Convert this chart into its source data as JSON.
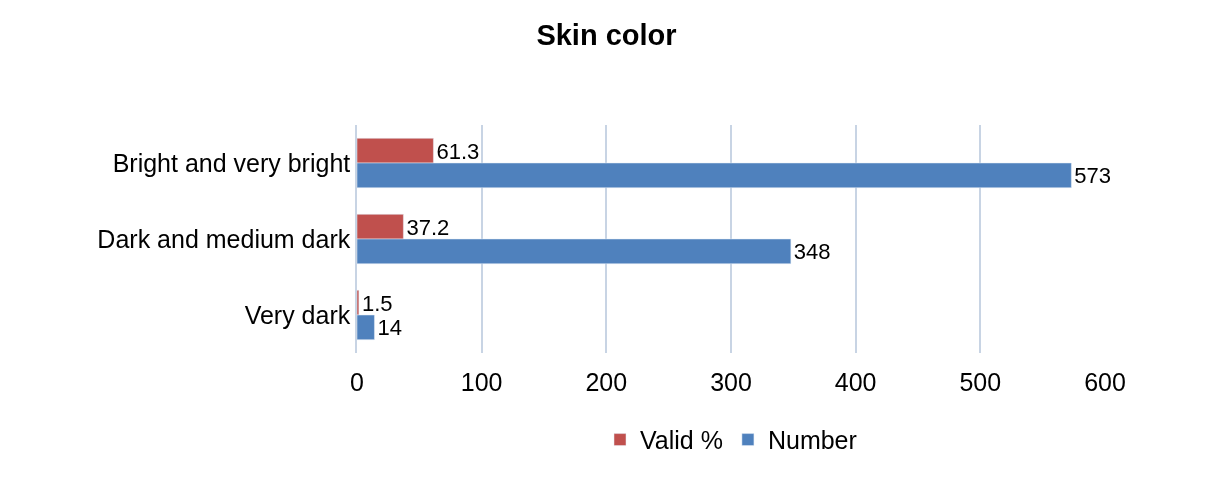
{
  "chart_data": {
    "type": "bar",
    "orientation": "horizontal",
    "title": "Skin color",
    "categories": [
      "Bright and very bright",
      "Dark and medium dark",
      "Very dark"
    ],
    "series": [
      {
        "name": "Valid %",
        "color": "#c0504d",
        "values": [
          61.3,
          37.2,
          1.5
        ]
      },
      {
        "name": "Number",
        "color": "#4f81bd",
        "values": [
          573,
          348,
          14
        ]
      }
    ],
    "xlim": [
      0,
      600
    ],
    "xticks": [
      0,
      100,
      200,
      300,
      400,
      500,
      600
    ],
    "grid": "x",
    "legend": "bottom",
    "data_labels": true
  }
}
